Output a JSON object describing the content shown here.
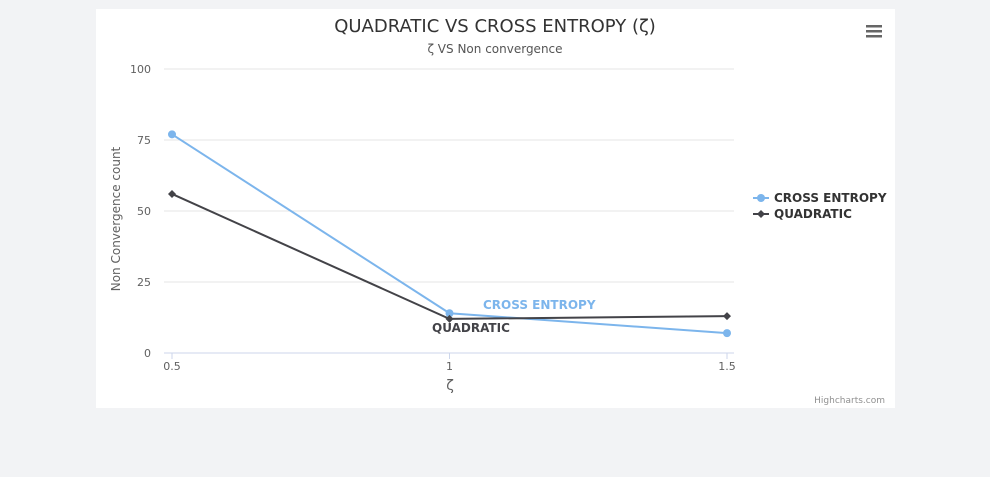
{
  "chart_data": {
    "type": "line",
    "title": "QUADRATIC VS CROSS ENTROPY (ζ)",
    "subtitle": "ζ VS Non convergence",
    "xlabel": "ζ",
    "ylabel": "Non Convergence count",
    "categories": [
      "0.5",
      "1",
      "1.5"
    ],
    "x": [
      0.5,
      1,
      1.5
    ],
    "ylim": [
      0,
      100
    ],
    "y_ticks": [
      "0",
      "25",
      "50",
      "75",
      "100"
    ],
    "grid": true,
    "legend_position": "right",
    "series": [
      {
        "name": "CROSS ENTROPY",
        "values": [
          77,
          14,
          7
        ],
        "color": "#7cb5ec",
        "marker": "circle"
      },
      {
        "name": "QUADRATIC",
        "values": [
          56,
          12,
          13
        ],
        "color": "#434348",
        "marker": "diamond"
      }
    ]
  },
  "menu_icon": "hamburger-menu-icon",
  "credits": "Highcharts.com"
}
